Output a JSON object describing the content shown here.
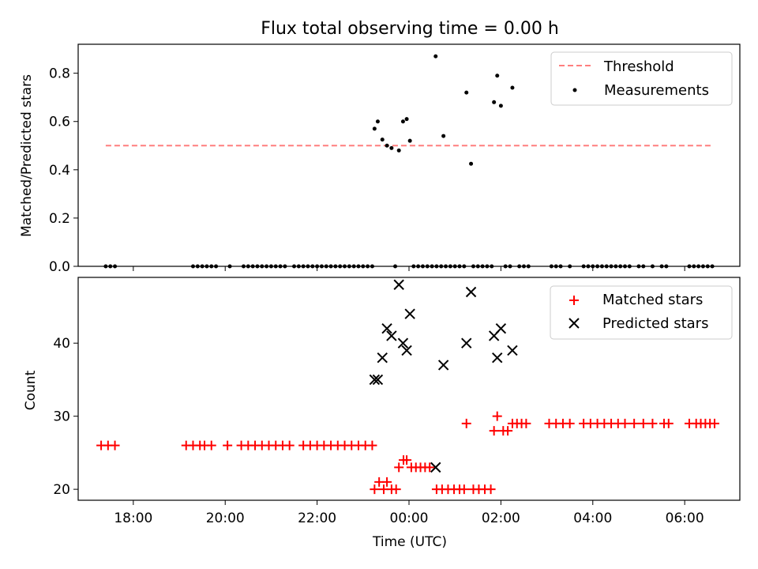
{
  "chart_data": {
    "title": "Flux total observing time = 0.00 h",
    "xlabel": "Time (UTC)",
    "x_unit": "hours relative to 00:00 UTC",
    "x_range": [
      -7.2,
      7.2
    ],
    "x_ticks": [
      {
        "value": -6,
        "label": "18:00"
      },
      {
        "value": -4,
        "label": "20:00"
      },
      {
        "value": -2,
        "label": "22:00"
      },
      {
        "value": 0,
        "label": "00:00"
      },
      {
        "value": 2,
        "label": "02:00"
      },
      {
        "value": 4,
        "label": "04:00"
      },
      {
        "value": 6,
        "label": "06:00"
      }
    ],
    "panels": [
      {
        "type": "scatter",
        "ylabel": "Matched/Predicted stars",
        "ylim": [
          0,
          0.92
        ],
        "y_ticks": [
          0.0,
          0.2,
          0.4,
          0.6,
          0.8
        ],
        "y_tick_labels": [
          "0.0",
          "0.2",
          "0.4",
          "0.6",
          "0.8"
        ],
        "legend_position": "top-right",
        "threshold": {
          "name": "Threshold",
          "value": 0.5,
          "x_range": [
            -6.6,
            6.6
          ],
          "color": "#ff7f7f",
          "style": "dashed"
        },
        "series": [
          {
            "name": "Measurements",
            "marker": "dot",
            "color": "#000000",
            "points": [
              [
                -6.6,
                0
              ],
              [
                -6.5,
                0
              ],
              [
                -6.4,
                0
              ],
              [
                -4.7,
                0
              ],
              [
                -4.6,
                0
              ],
              [
                -4.5,
                0
              ],
              [
                -4.4,
                0
              ],
              [
                -4.3,
                0
              ],
              [
                -4.2,
                0
              ],
              [
                -3.9,
                0
              ],
              [
                -3.6,
                0
              ],
              [
                -3.5,
                0
              ],
              [
                -3.4,
                0
              ],
              [
                -3.3,
                0
              ],
              [
                -3.2,
                0
              ],
              [
                -3.1,
                0
              ],
              [
                -3.0,
                0
              ],
              [
                -2.9,
                0
              ],
              [
                -2.8,
                0
              ],
              [
                -2.7,
                0
              ],
              [
                -2.5,
                0
              ],
              [
                -2.4,
                0
              ],
              [
                -2.3,
                0
              ],
              [
                -2.2,
                0
              ],
              [
                -2.1,
                0
              ],
              [
                -2.0,
                0
              ],
              [
                -1.9,
                0
              ],
              [
                -1.8,
                0
              ],
              [
                -1.7,
                0
              ],
              [
                -1.6,
                0
              ],
              [
                -1.5,
                0
              ],
              [
                -1.4,
                0
              ],
              [
                -1.3,
                0
              ],
              [
                -1.2,
                0
              ],
              [
                -1.1,
                0
              ],
              [
                -1.0,
                0
              ],
              [
                -0.9,
                0
              ],
              [
                -0.8,
                0
              ],
              [
                -0.3,
                0
              ],
              [
                0.1,
                0
              ],
              [
                0.2,
                0
              ],
              [
                0.3,
                0
              ],
              [
                0.4,
                0
              ],
              [
                0.5,
                0
              ],
              [
                0.6,
                0
              ],
              [
                0.7,
                0
              ],
              [
                0.8,
                0
              ],
              [
                0.9,
                0
              ],
              [
                1.0,
                0
              ],
              [
                1.1,
                0
              ],
              [
                1.2,
                0
              ],
              [
                1.4,
                0
              ],
              [
                1.5,
                0
              ],
              [
                1.6,
                0
              ],
              [
                1.7,
                0
              ],
              [
                1.8,
                0
              ],
              [
                2.1,
                0
              ],
              [
                2.2,
                0
              ],
              [
                2.4,
                0
              ],
              [
                2.5,
                0
              ],
              [
                2.6,
                0
              ],
              [
                3.1,
                0
              ],
              [
                3.2,
                0
              ],
              [
                3.3,
                0
              ],
              [
                3.5,
                0
              ],
              [
                3.8,
                0
              ],
              [
                3.9,
                0
              ],
              [
                4.0,
                0
              ],
              [
                4.1,
                0
              ],
              [
                4.2,
                0
              ],
              [
                4.3,
                0
              ],
              [
                4.4,
                0
              ],
              [
                4.5,
                0
              ],
              [
                4.6,
                0
              ],
              [
                4.7,
                0
              ],
              [
                4.8,
                0
              ],
              [
                5.0,
                0
              ],
              [
                5.1,
                0
              ],
              [
                5.3,
                0
              ],
              [
                5.5,
                0
              ],
              [
                5.6,
                0
              ],
              [
                6.1,
                0
              ],
              [
                6.2,
                0
              ],
              [
                6.3,
                0
              ],
              [
                6.4,
                0
              ],
              [
                6.5,
                0
              ],
              [
                6.6,
                0
              ],
              [
                -0.75,
                0.57
              ],
              [
                -0.68,
                0.6
              ],
              [
                -0.58,
                0.525
              ],
              [
                -0.48,
                0.5
              ],
              [
                -0.38,
                0.49
              ],
              [
                -0.22,
                0.48
              ],
              [
                -0.13,
                0.6
              ],
              [
                -0.05,
                0.61
              ],
              [
                0.02,
                0.52
              ],
              [
                0.58,
                0.87
              ],
              [
                0.75,
                0.54
              ],
              [
                1.25,
                0.72
              ],
              [
                1.35,
                0.425
              ],
              [
                1.85,
                0.68
              ],
              [
                1.92,
                0.79
              ],
              [
                2.0,
                0.665
              ],
              [
                2.25,
                0.74
              ]
            ]
          }
        ]
      },
      {
        "type": "scatter",
        "ylabel": "Count",
        "ylim": [
          18.5,
          49
        ],
        "y_ticks": [
          20,
          30,
          40
        ],
        "y_tick_labels": [
          "20",
          "30",
          "40"
        ],
        "legend_position": "top-right",
        "series": [
          {
            "name": "Matched stars",
            "marker": "plus",
            "color": "#ff0000",
            "points": [
              [
                -6.7,
                26
              ],
              [
                -6.55,
                26
              ],
              [
                -6.4,
                26
              ],
              [
                -4.85,
                26
              ],
              [
                -4.7,
                26
              ],
              [
                -4.55,
                26
              ],
              [
                -4.45,
                26
              ],
              [
                -4.3,
                26
              ],
              [
                -3.95,
                26
              ],
              [
                -3.65,
                26
              ],
              [
                -3.5,
                26
              ],
              [
                -3.35,
                26
              ],
              [
                -3.2,
                26
              ],
              [
                -3.05,
                26
              ],
              [
                -2.9,
                26
              ],
              [
                -2.75,
                26
              ],
              [
                -2.6,
                26
              ],
              [
                -2.3,
                26
              ],
              [
                -2.15,
                26
              ],
              [
                -2.0,
                26
              ],
              [
                -1.85,
                26
              ],
              [
                -1.7,
                26
              ],
              [
                -1.55,
                26
              ],
              [
                -1.4,
                26
              ],
              [
                -1.25,
                26
              ],
              [
                -1.1,
                26
              ],
              [
                -0.95,
                26
              ],
              [
                -0.8,
                26
              ],
              [
                -0.75,
                20
              ],
              [
                -0.65,
                21
              ],
              [
                -0.55,
                20
              ],
              [
                -0.48,
                21
              ],
              [
                -0.38,
                20
              ],
              [
                -0.28,
                20
              ],
              [
                -0.22,
                23
              ],
              [
                -0.12,
                24
              ],
              [
                -0.05,
                24
              ],
              [
                0.05,
                23
              ],
              [
                0.15,
                23
              ],
              [
                0.25,
                23
              ],
              [
                0.35,
                23
              ],
              [
                0.45,
                23
              ],
              [
                0.6,
                20
              ],
              [
                0.72,
                20
              ],
              [
                0.85,
                20
              ],
              [
                0.98,
                20
              ],
              [
                1.1,
                20
              ],
              [
                1.2,
                20
              ],
              [
                1.25,
                29
              ],
              [
                1.4,
                20
              ],
              [
                1.52,
                20
              ],
              [
                1.65,
                20
              ],
              [
                1.78,
                20
              ],
              [
                1.85,
                28
              ],
              [
                1.92,
                30
              ],
              [
                2.05,
                28
              ],
              [
                2.15,
                28
              ],
              [
                2.25,
                29
              ],
              [
                2.35,
                29
              ],
              [
                2.45,
                29
              ],
              [
                2.55,
                29
              ],
              [
                3.05,
                29
              ],
              [
                3.2,
                29
              ],
              [
                3.35,
                29
              ],
              [
                3.5,
                29
              ],
              [
                3.8,
                29
              ],
              [
                3.95,
                29
              ],
              [
                4.1,
                29
              ],
              [
                4.25,
                29
              ],
              [
                4.4,
                29
              ],
              [
                4.55,
                29
              ],
              [
                4.7,
                29
              ],
              [
                4.9,
                29
              ],
              [
                5.1,
                29
              ],
              [
                5.3,
                29
              ],
              [
                5.55,
                29
              ],
              [
                5.65,
                29
              ],
              [
                6.1,
                29
              ],
              [
                6.25,
                29
              ],
              [
                6.35,
                29
              ],
              [
                6.45,
                29
              ],
              [
                6.55,
                29
              ],
              [
                6.65,
                29
              ]
            ]
          },
          {
            "name": "Predicted stars",
            "marker": "x",
            "color": "#000000",
            "points": [
              [
                -0.75,
                35
              ],
              [
                -0.68,
                35
              ],
              [
                -0.58,
                38
              ],
              [
                -0.48,
                42
              ],
              [
                -0.38,
                41
              ],
              [
                -0.22,
                48
              ],
              [
                -0.13,
                40
              ],
              [
                -0.05,
                39
              ],
              [
                0.02,
                44
              ],
              [
                0.58,
                23
              ],
              [
                0.75,
                37
              ],
              [
                1.25,
                40
              ],
              [
                1.35,
                47
              ],
              [
                1.85,
                41
              ],
              [
                1.92,
                38
              ],
              [
                2.0,
                42
              ],
              [
                2.25,
                39
              ]
            ]
          }
        ]
      }
    ]
  }
}
